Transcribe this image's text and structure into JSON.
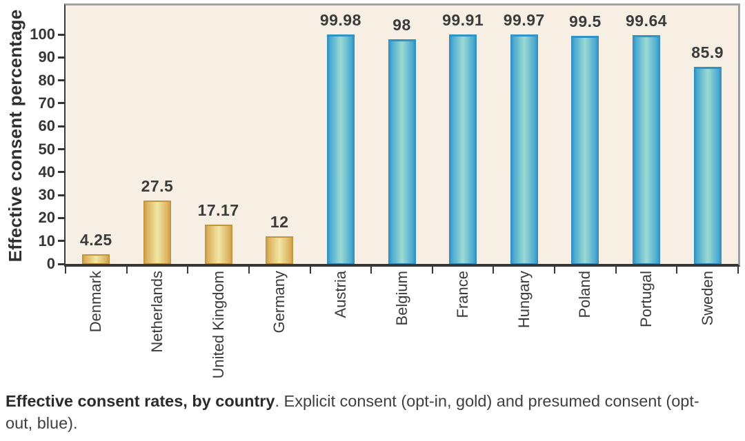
{
  "figure": {
    "caption_bold": "Effective consent rates, by country",
    "caption_line1_rest": ". Explicit consent (opt-in, gold) and presumed consent (opt-",
    "caption_line2": "out, blue)."
  },
  "chart_data": {
    "type": "bar",
    "title": "",
    "xlabel": "",
    "ylabel": "Effective consent percentage",
    "ylim": [
      0,
      112
    ],
    "yticks": [
      0,
      10,
      20,
      30,
      40,
      50,
      60,
      70,
      80,
      90,
      100
    ],
    "grid": false,
    "legend_position": "none (color meaning explained in caption)",
    "categories": [
      "Denmark",
      "Netherlands",
      "United Kingdom",
      "Germany",
      "Austria",
      "Belgium",
      "France",
      "Hungary",
      "Poland",
      "Portugal",
      "Sweden"
    ],
    "series": [
      {
        "name": "Effective consent percentage",
        "values": [
          4.25,
          27.5,
          17.17,
          12,
          99.98,
          98,
          99.91,
          99.97,
          99.5,
          99.64,
          85.9
        ]
      }
    ],
    "bars": [
      {
        "label": "Denmark",
        "value": 4.25,
        "display": "4.25",
        "group": "explicit consent (opt-in)",
        "color": "gold"
      },
      {
        "label": "Netherlands",
        "value": 27.5,
        "display": "27.5",
        "group": "explicit consent (opt-in)",
        "color": "gold"
      },
      {
        "label": "United Kingdom",
        "value": 17.17,
        "display": "17.17",
        "group": "explicit consent (opt-in)",
        "color": "gold"
      },
      {
        "label": "Germany",
        "value": 12,
        "display": "12",
        "group": "explicit consent (opt-in)",
        "color": "gold"
      },
      {
        "label": "Austria",
        "value": 99.98,
        "display": "99.98",
        "group": "presumed consent (opt-out)",
        "color": "blue"
      },
      {
        "label": "Belgium",
        "value": 98,
        "display": "98",
        "group": "presumed consent (opt-out)",
        "color": "blue"
      },
      {
        "label": "France",
        "value": 99.91,
        "display": "99.91",
        "group": "presumed consent (opt-out)",
        "color": "blue"
      },
      {
        "label": "Hungary",
        "value": 99.97,
        "display": "99.97",
        "group": "presumed consent (opt-out)",
        "color": "blue"
      },
      {
        "label": "Poland",
        "value": 99.5,
        "display": "99.5",
        "group": "presumed consent (opt-out)",
        "color": "blue"
      },
      {
        "label": "Portugal",
        "value": 99.64,
        "display": "99.64",
        "group": "presumed consent (opt-out)",
        "color": "blue"
      },
      {
        "label": "Sweden",
        "value": 85.9,
        "display": "85.9",
        "group": "presumed consent (opt-out)",
        "color": "blue"
      }
    ],
    "colors": {
      "gold_fill_center": "#f0e7a3",
      "gold_fill_edge": "#c89b40",
      "gold_border": "#bd9138",
      "blue_fill_center": "#9bdbd3",
      "blue_fill_edge": "#2f93c5",
      "blue_border": "#2e8cbe",
      "plot_background": "#f7efe4",
      "frame": "#a2a19d",
      "axis": "#363636",
      "text": "#3a3a3a"
    }
  }
}
